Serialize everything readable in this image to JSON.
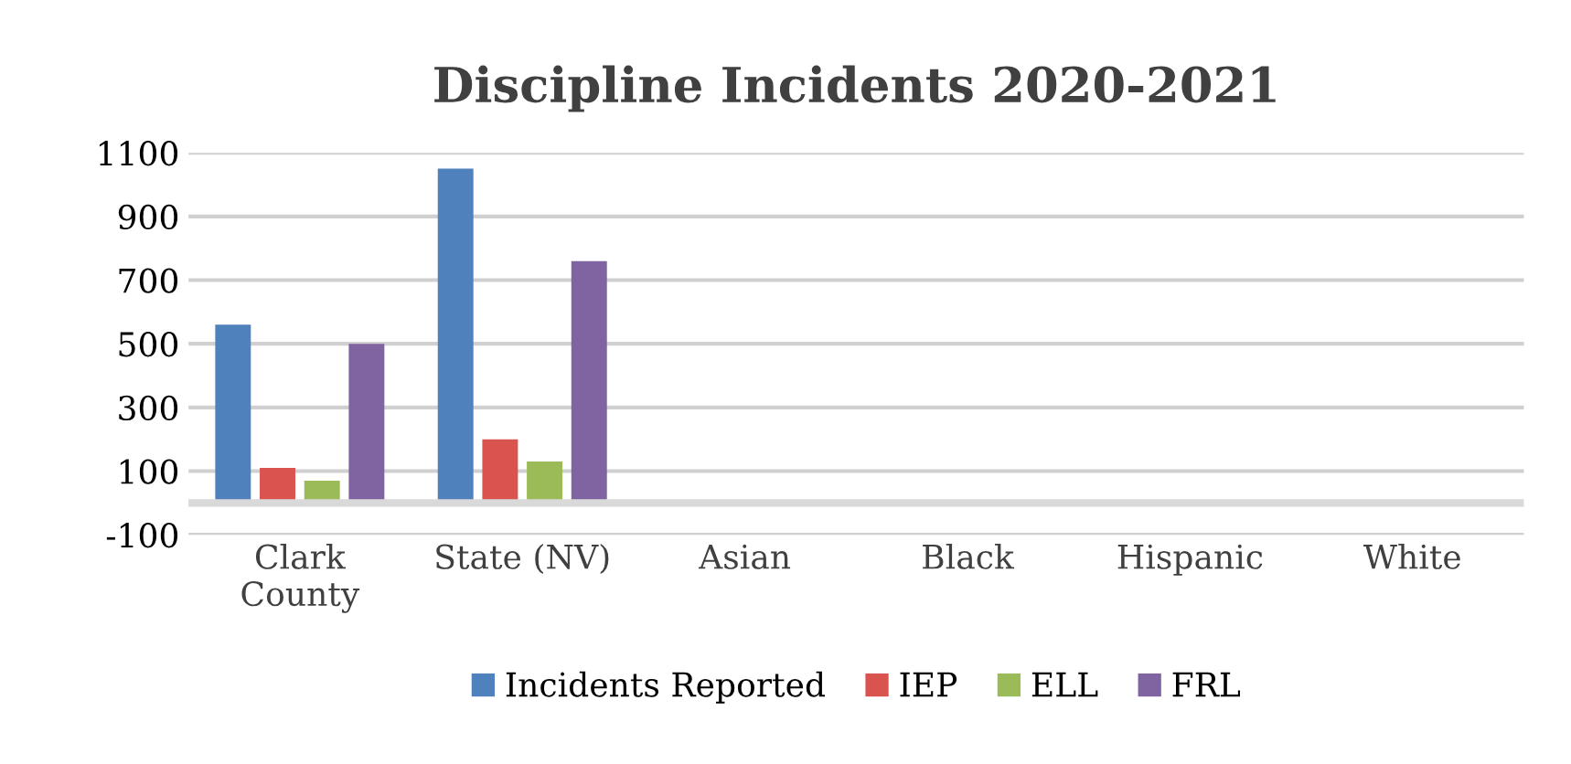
{
  "chart_data": {
    "type": "bar",
    "title": "Discipline Incidents 2020-2021",
    "categories": [
      "Clark\nCounty",
      "State (NV)",
      "Asian",
      "Black",
      "Hispanic",
      "White"
    ],
    "series": [
      {
        "name": "Incidents Reported",
        "color": "#4f81bd",
        "values": [
          560,
          1050,
          null,
          null,
          null,
          null
        ]
      },
      {
        "name": "IEP",
        "color": "#d9534f",
        "values": [
          110,
          200,
          null,
          null,
          null,
          null
        ]
      },
      {
        "name": "ELL",
        "color": "#9bbb59",
        "values": [
          70,
          130,
          null,
          null,
          null,
          null
        ]
      },
      {
        "name": "FRL",
        "color": "#8064a2",
        "values": [
          500,
          760,
          null,
          null,
          null,
          null
        ]
      }
    ],
    "ylim": [
      -100,
      1100
    ],
    "yticks": [
      -100,
      100,
      300,
      500,
      700,
      900,
      1100
    ],
    "grid": "y",
    "legend": "bottom"
  }
}
